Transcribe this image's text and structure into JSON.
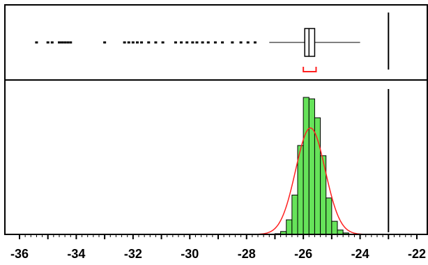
{
  "chart_data": {
    "type": "histogram",
    "title": "",
    "xlabel": "",
    "ylabel": "",
    "xlim": [
      -36,
      -22
    ],
    "x_ticks": [
      -36,
      -34,
      -32,
      -30,
      -28,
      -26,
      -24,
      -22
    ],
    "x_tick_labels": [
      "-36",
      "-34",
      "-32",
      "-30",
      "-28",
      "-26",
      "-24",
      "-22"
    ],
    "grid": false,
    "histogram": {
      "bin_width": 0.2,
      "bins": [
        {
          "start": -27.0,
          "count": 1
        },
        {
          "start": -26.8,
          "count": 4
        },
        {
          "start": -26.6,
          "count": 20
        },
        {
          "start": -26.4,
          "count": 54
        },
        {
          "start": -26.2,
          "count": 122
        },
        {
          "start": -26.0,
          "count": 188
        },
        {
          "start": -25.8,
          "count": 186
        },
        {
          "start": -25.6,
          "count": 160
        },
        {
          "start": -25.4,
          "count": 108
        },
        {
          "start": -25.2,
          "count": 50
        },
        {
          "start": -25.0,
          "count": 18
        },
        {
          "start": -24.8,
          "count": 6
        },
        {
          "start": -24.6,
          "count": 2
        }
      ]
    },
    "normal_fit": {
      "mean": -25.75,
      "sd": 0.52,
      "peak_count": 146
    },
    "boxplot": {
      "q1": -25.95,
      "median": -25.8,
      "q3": -25.6,
      "whisker_low": -27.2,
      "whisker_high": -24.0,
      "shortest_half": [
        -26.0,
        -25.55
      ],
      "outliers": [
        -35.4,
        -35.0,
        -34.85,
        -34.6,
        -34.5,
        -34.4,
        -34.3,
        -34.2,
        -33.0,
        -32.3,
        -32.15,
        -32.0,
        -31.85,
        -31.7,
        -31.45,
        -31.2,
        -30.95,
        -30.5,
        -30.3,
        -30.1,
        -29.9,
        -29.75,
        -29.55,
        -29.35,
        -29.1,
        -28.85,
        -28.5,
        -28.2,
        -27.95,
        -27.7
      ]
    },
    "reference_line": -23.0,
    "colors": {
      "bar_fill": "#66e35a",
      "fit_curve": "#ff2020",
      "shortest_half": "#ff2020",
      "box_fill": "#ffffff",
      "axis": "#000000"
    }
  }
}
